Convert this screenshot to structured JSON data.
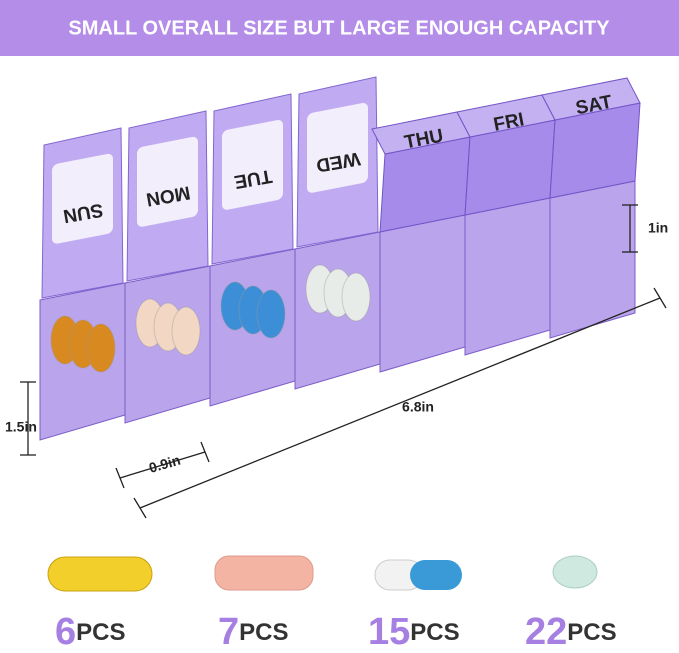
{
  "header": {
    "title": "SMALL OVERALL SIZE BUT LARGE ENOUGH CAPACITY"
  },
  "days": [
    "SUN",
    "MON",
    "TUE",
    "WED",
    "THU",
    "FRI",
    "SAT"
  ],
  "dimensions": {
    "height": "1in",
    "depth": "1.5in",
    "width": "0.9in",
    "length": "6.8in"
  },
  "capacity": [
    {
      "number": "6",
      "unit": "PCS"
    },
    {
      "number": "7",
      "unit": "PCS"
    },
    {
      "number": "15",
      "unit": "PCS"
    },
    {
      "number": "22",
      "unit": "PCS"
    }
  ]
}
